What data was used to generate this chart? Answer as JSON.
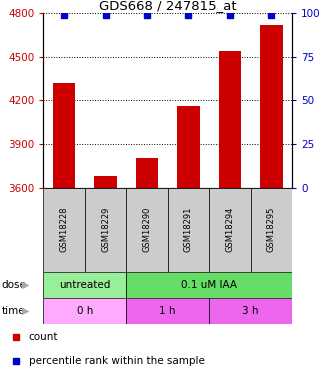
{
  "title": "GDS668 / 247815_at",
  "samples": [
    "GSM18228",
    "GSM18229",
    "GSM18290",
    "GSM18291",
    "GSM18294",
    "GSM18295"
  ],
  "counts": [
    4320,
    3680,
    3800,
    4160,
    4540,
    4720
  ],
  "percentiles": [
    99,
    99,
    99,
    99,
    99,
    99
  ],
  "ylim_left": [
    3600,
    4800
  ],
  "ylim_right": [
    0,
    100
  ],
  "yticks_left": [
    3600,
    3900,
    4200,
    4500,
    4800
  ],
  "yticks_right": [
    0,
    25,
    50,
    75,
    100
  ],
  "bar_color": "#cc0000",
  "dot_color": "#0000cc",
  "bar_width": 0.55,
  "dose_labels": [
    {
      "text": "untreated",
      "start": 0,
      "end": 2,
      "color": "#99ee99"
    },
    {
      "text": "0.1 uM IAA",
      "start": 2,
      "end": 6,
      "color": "#66dd66"
    }
  ],
  "time_labels": [
    {
      "text": "0 h",
      "start": 0,
      "end": 2,
      "color": "#ffaaff"
    },
    {
      "text": "1 h",
      "start": 2,
      "end": 4,
      "color": "#ee66ee"
    },
    {
      "text": "3 h",
      "start": 4,
      "end": 6,
      "color": "#ee66ee"
    }
  ],
  "legend_count_color": "#cc0000",
  "legend_pct_color": "#0000cc",
  "left_tick_color": "#cc0000",
  "right_tick_color": "#0000cc",
  "grid_color": "#000000",
  "sample_box_color": "#cccccc"
}
